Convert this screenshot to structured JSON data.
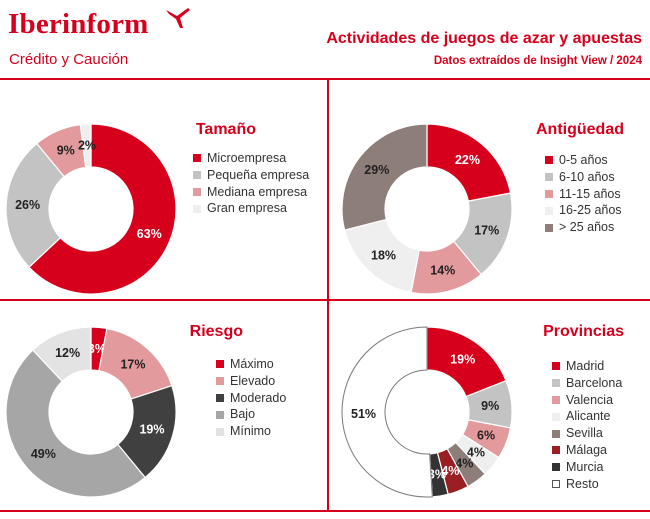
{
  "header": {
    "logo": "Iberinform",
    "logo_sub": "Crédito y Caución",
    "title": "Actividades de juegos de azar y apuestas",
    "subtitle": "Datos extraídos de Insight View / 2024"
  },
  "colors": {
    "brand": "#d6001c"
  },
  "chart_data": [
    {
      "type": "pie",
      "title": "Tamaño",
      "categories": [
        "Microempresa",
        "Pequeña empresa",
        "Mediana empresa",
        "Gran empresa"
      ],
      "values": [
        63,
        26,
        9,
        2
      ],
      "labels": [
        "63%",
        "26%",
        "9%",
        "2%"
      ],
      "colors": [
        "#d6001c",
        "#c3c3c3",
        "#e39a9d",
        "#efefef"
      ]
    },
    {
      "type": "pie",
      "title": "Antigüedad",
      "categories": [
        "0-5 años",
        "6-10 años",
        "11-15 años",
        "16-25 años",
        "> 25 años"
      ],
      "values": [
        22,
        17,
        14,
        18,
        29
      ],
      "labels": [
        "22%",
        "17%",
        "14%",
        "18%",
        "29%"
      ],
      "colors": [
        "#d6001c",
        "#c3c3c3",
        "#e39a9d",
        "#efefef",
        "#8e7e79"
      ]
    },
    {
      "type": "pie",
      "title": "Riesgo",
      "categories": [
        "Máximo",
        "Elevado",
        "Moderado",
        "Bajo",
        "Mínimo"
      ],
      "values": [
        3,
        17,
        19,
        49,
        12
      ],
      "labels": [
        "3%",
        "17%",
        "19%",
        "49%",
        "12%"
      ],
      "colors": [
        "#d6001c",
        "#e39a9d",
        "#404040",
        "#a6a6a6",
        "#e3e3e3"
      ]
    },
    {
      "type": "pie",
      "title": "Provincias",
      "categories": [
        "Madrid",
        "Barcelona",
        "Valencia",
        "Alicante",
        "Sevilla",
        "Málaga",
        "Murcia",
        "Resto"
      ],
      "values": [
        19,
        9,
        6,
        4,
        4,
        4,
        3,
        51
      ],
      "labels": [
        "19%",
        "9%",
        "6%",
        "4%",
        "4%",
        "4%",
        "3%",
        "51%"
      ],
      "colors": [
        "#d6001c",
        "#c3c3c3",
        "#e39a9d",
        "#efefef",
        "#8e7e79",
        "#9a1e22",
        "#333333",
        "#ffffff"
      ]
    }
  ]
}
